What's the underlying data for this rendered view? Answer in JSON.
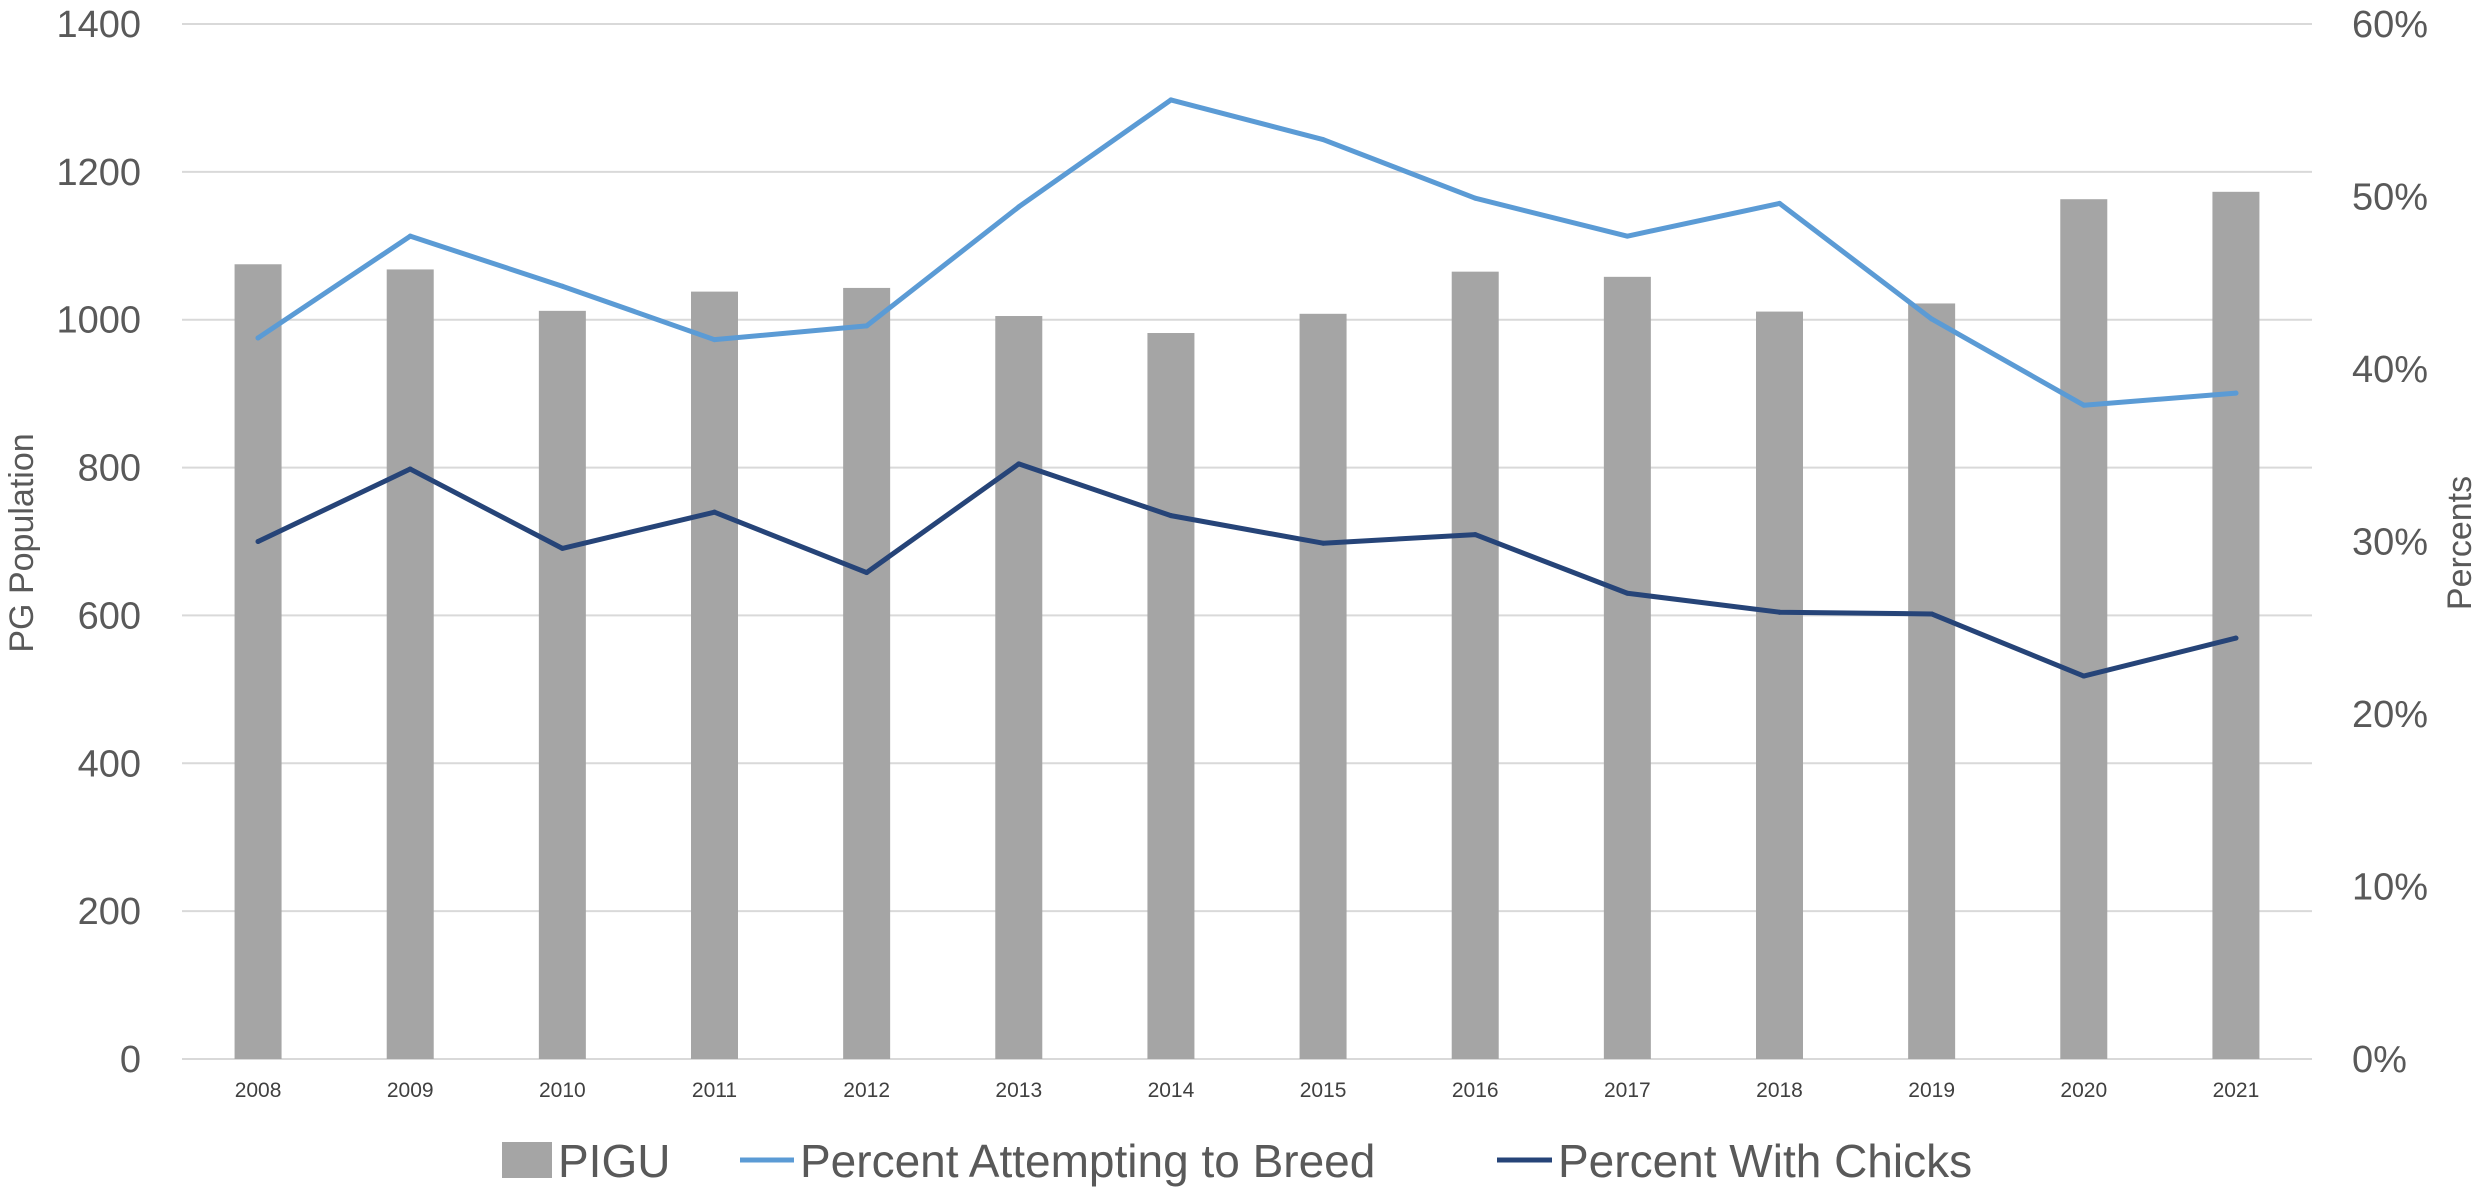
{
  "chart_data": {
    "type": "bar",
    "categories": [
      "2008",
      "2009",
      "2010",
      "2011",
      "2012",
      "2013",
      "2014",
      "2015",
      "2016",
      "2017",
      "2018",
      "2019",
      "2020",
      "2021"
    ],
    "series": [
      {
        "name": "PIGU",
        "type": "bar",
        "axis": "left",
        "values": [
          1075,
          1068,
          1012,
          1038,
          1043,
          1005,
          982,
          1008,
          1065,
          1058,
          1011,
          1022,
          1163,
          1173
        ]
      },
      {
        "name": "Percent Attempting to Breed",
        "type": "line",
        "axis": "right",
        "values": [
          41.8,
          47.7,
          44.8,
          41.7,
          42.5,
          49.4,
          55.6,
          53.3,
          49.9,
          47.7,
          49.6,
          42.9,
          37.9,
          38.6
        ]
      },
      {
        "name": "Percent With Chicks",
        "type": "line",
        "axis": "right",
        "values": [
          30.0,
          34.2,
          29.6,
          31.7,
          28.2,
          34.5,
          31.5,
          29.9,
          30.4,
          27.0,
          25.9,
          25.8,
          22.2,
          24.4
        ]
      }
    ],
    "ylabel": "PG Population",
    "y2label": "Percents",
    "xlabel": "",
    "ylim": [
      0,
      1400
    ],
    "y2lim": [
      0,
      60
    ],
    "yticks": [
      "0",
      "200",
      "400",
      "600",
      "800",
      "1000",
      "1200",
      "1400"
    ],
    "y2ticks": [
      "0%",
      "10%",
      "20%",
      "30%",
      "40%",
      "50%",
      "60%"
    ],
    "grid": true,
    "legend_position": "bottom",
    "colors": {
      "bar": "#a5a5a5",
      "attempting": "#5b9bd5",
      "chicks": "#264478",
      "grid": "#d9d9d9",
      "text": "#595959"
    }
  }
}
